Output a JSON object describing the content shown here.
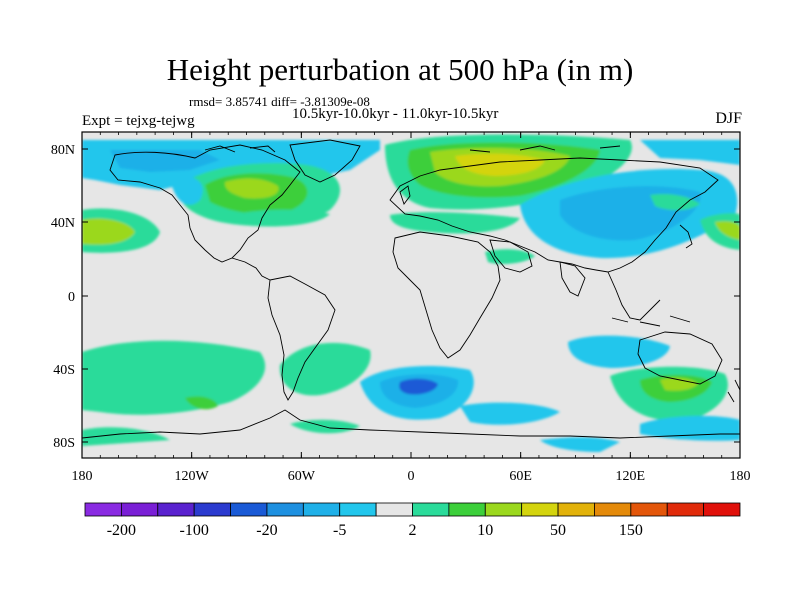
{
  "title": "Height perturbation at 500 hPa (in m)",
  "stats_line": "rmsd= 3.85741  diff= -3.81309e-08",
  "left_label": "Expt = tejxg-tejwg",
  "center_label": "10.5kyr-10.0kyr - 11.0kyr-10.5kyr",
  "right_label": "DJF",
  "lat_ticks": [
    "80N",
    "40N",
    "0",
    "40S",
    "80S"
  ],
  "lon_ticks": [
    "180",
    "120W",
    "60W",
    "0",
    "60E",
    "120E",
    "180"
  ],
  "colorbar": {
    "colors": [
      "#8a2be2",
      "#7a1fd6",
      "#5a22cf",
      "#2b3bcf",
      "#1a5ad6",
      "#1e90e0",
      "#1fb0e8",
      "#22c6ec",
      "#e6e6e6",
      "#2adb9a",
      "#3ccf3a",
      "#9bd81e",
      "#d4d40e",
      "#e2b20a",
      "#e48a0a",
      "#e3560a",
      "#e02a0a",
      "#e0100a"
    ],
    "labels": [
      "-200",
      "-100",
      "-20",
      "-5",
      "2",
      "10",
      "50",
      "150"
    ]
  }
}
